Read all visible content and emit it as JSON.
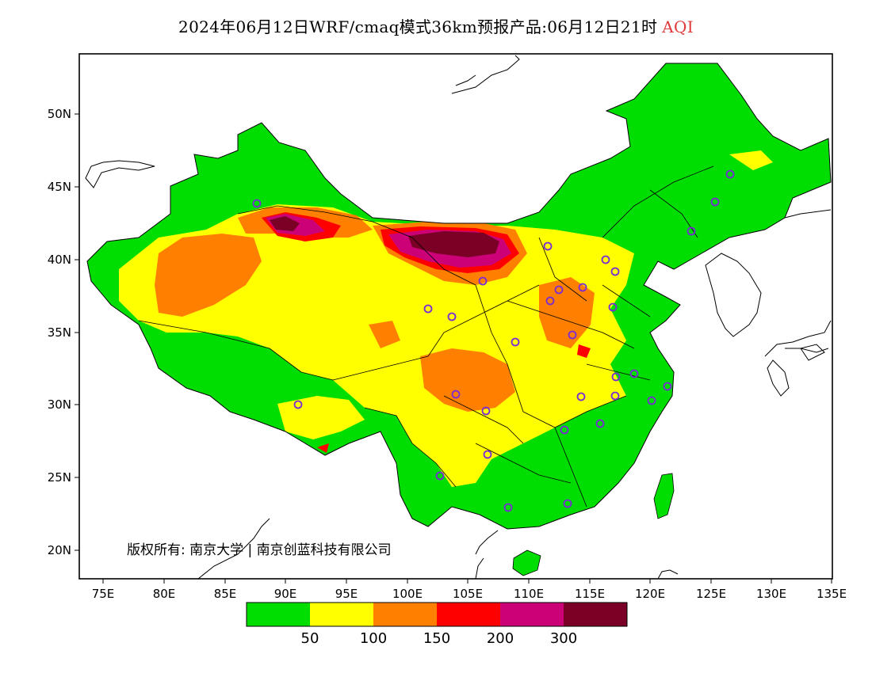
{
  "header": {
    "title": "2024年06月12日WRF/cmaq模式36km预报产品:06月12日21时",
    "variable": "AQI"
  },
  "map": {
    "lat_ticks": [
      "50N",
      "45N",
      "40N",
      "35N",
      "30N",
      "25N",
      "20N"
    ],
    "lon_ticks": [
      "75E",
      "80E",
      "85E",
      "90E",
      "95E",
      "100E",
      "105E",
      "110E",
      "115E",
      "120E",
      "125E",
      "130E",
      "135E"
    ],
    "copyright": "版权所有: 南京大学 | 南京创蓝科技有限公司"
  },
  "legend": {
    "colors": [
      "#00dd00",
      "#ffff00",
      "#ff8000",
      "#ff0000",
      "#cc0077",
      "#7a0026"
    ],
    "labels": [
      "50",
      "100",
      "150",
      "200",
      "300"
    ]
  }
}
